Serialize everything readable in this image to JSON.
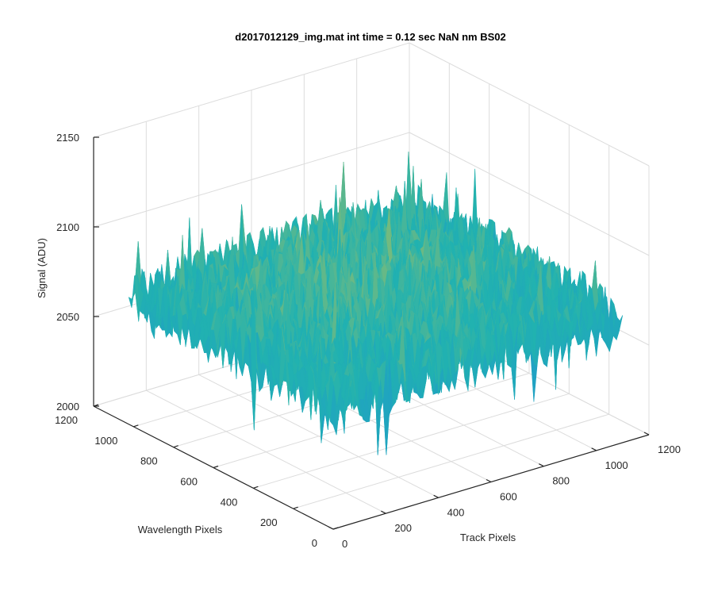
{
  "chart_data": {
    "type": "surface",
    "title": "d2017012129_img.mat int time = 0.12 sec  NaN nm BS02",
    "xlabel": "Track Pixels",
    "ylabel": "Wavelength Pixels",
    "zlabel": "Signal (ADU)",
    "xlim": [
      0,
      1200
    ],
    "ylim": [
      0,
      1200
    ],
    "zlim": [
      2000,
      2150
    ],
    "x_ticks": [
      "0",
      "200",
      "400",
      "600",
      "800",
      "1000",
      "1200"
    ],
    "y_ticks": [
      "0",
      "200",
      "400",
      "600",
      "800",
      "1000",
      "1200"
    ],
    "z_ticks": [
      "2000",
      "2050",
      "2100",
      "2150"
    ],
    "x_extent": [
      0,
      1100
    ],
    "y_extent": [
      0,
      1024
    ],
    "signal_mean": 2065,
    "signal_range": [
      2010,
      2145
    ],
    "colormap": "parula",
    "colors": {
      "low": "#1f8fd8",
      "mid": "#21b2b0",
      "high": "#e7c53a"
    },
    "grid": true
  }
}
